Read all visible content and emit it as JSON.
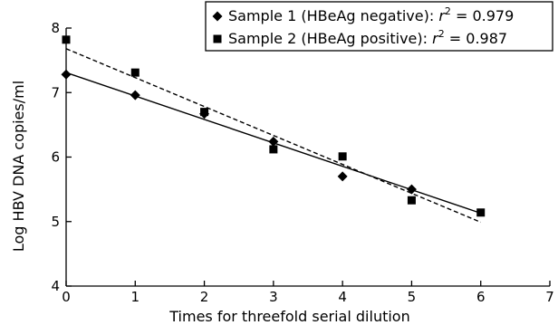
{
  "chart_data": {
    "type": "scatter",
    "xlabel": "Times for threefold serial dilution",
    "ylabel": "Log HBV DNA copies/ml",
    "xlim": [
      0,
      7
    ],
    "ylim": [
      4,
      8
    ],
    "xticks": [
      "0",
      "1",
      "2",
      "3",
      "4",
      "5",
      "6",
      "7"
    ],
    "yticks": [
      "4",
      "5",
      "6",
      "7",
      "8"
    ],
    "grid": false,
    "legend_position": "top-right",
    "series": [
      {
        "name": "Sample 1 (HBeAg negative): r² = 0.979",
        "legend_prefix": "Sample 1 (HBeAg negative): ",
        "r2_value": "0.979",
        "marker": "diamond",
        "line_style": "solid",
        "x": [
          0,
          1,
          2,
          3,
          4,
          5
        ],
        "y": [
          7.28,
          6.96,
          6.67,
          6.24,
          5.7,
          5.5
        ],
        "fit": {
          "x": [
            0,
            6
          ],
          "y": [
            7.31,
            5.13
          ]
        }
      },
      {
        "name": "Sample 2 (HBeAg positive): r² = 0.987",
        "legend_prefix": "Sample 2 (HBeAg positive): ",
        "r2_value": "0.987",
        "marker": "square",
        "line_style": "dashed",
        "x": [
          0,
          1,
          2,
          3,
          4,
          5,
          6
        ],
        "y": [
          7.82,
          7.31,
          6.7,
          6.12,
          6.01,
          5.33,
          5.14
        ],
        "fit": {
          "x": [
            0,
            6
          ],
          "y": [
            7.68,
            4.99
          ]
        }
      }
    ]
  }
}
